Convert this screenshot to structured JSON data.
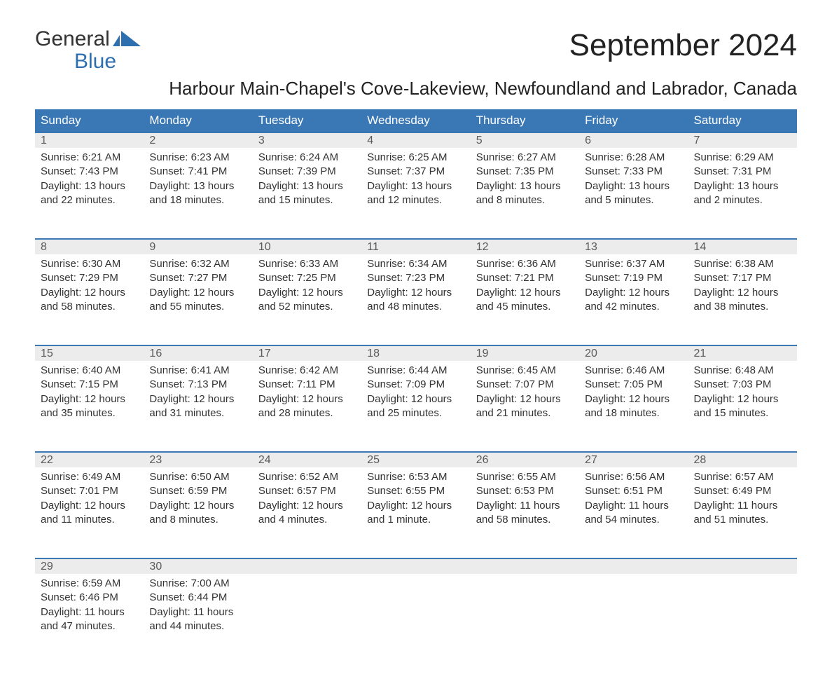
{
  "logo": {
    "line1": "General",
    "line2": "Blue"
  },
  "title": "September 2024",
  "subtitle": "Harbour Main-Chapel's Cove-Lakeview, Newfoundland and Labrador, Canada",
  "styling": {
    "header_bg": "#3a77b5",
    "header_text": "#ffffff",
    "daynum_bg": "#ececec",
    "daynum_border_top": "#3a77b5",
    "body_text": "#333333",
    "logo_accent": "#2e6fb0",
    "title_fontsize": 44,
    "subtitle_fontsize": 26,
    "th_fontsize": 17,
    "cell_fontsize": 15,
    "page_bg": "#ffffff"
  },
  "weekdays": [
    "Sunday",
    "Monday",
    "Tuesday",
    "Wednesday",
    "Thursday",
    "Friday",
    "Saturday"
  ],
  "weeks": [
    [
      {
        "day": "1",
        "sunrise": "Sunrise: 6:21 AM",
        "sunset": "Sunset: 7:43 PM",
        "dayl1": "Daylight: 13 hours",
        "dayl2": "and 22 minutes."
      },
      {
        "day": "2",
        "sunrise": "Sunrise: 6:23 AM",
        "sunset": "Sunset: 7:41 PM",
        "dayl1": "Daylight: 13 hours",
        "dayl2": "and 18 minutes."
      },
      {
        "day": "3",
        "sunrise": "Sunrise: 6:24 AM",
        "sunset": "Sunset: 7:39 PM",
        "dayl1": "Daylight: 13 hours",
        "dayl2": "and 15 minutes."
      },
      {
        "day": "4",
        "sunrise": "Sunrise: 6:25 AM",
        "sunset": "Sunset: 7:37 PM",
        "dayl1": "Daylight: 13 hours",
        "dayl2": "and 12 minutes."
      },
      {
        "day": "5",
        "sunrise": "Sunrise: 6:27 AM",
        "sunset": "Sunset: 7:35 PM",
        "dayl1": "Daylight: 13 hours",
        "dayl2": "and 8 minutes."
      },
      {
        "day": "6",
        "sunrise": "Sunrise: 6:28 AM",
        "sunset": "Sunset: 7:33 PM",
        "dayl1": "Daylight: 13 hours",
        "dayl2": "and 5 minutes."
      },
      {
        "day": "7",
        "sunrise": "Sunrise: 6:29 AM",
        "sunset": "Sunset: 7:31 PM",
        "dayl1": "Daylight: 13 hours",
        "dayl2": "and 2 minutes."
      }
    ],
    [
      {
        "day": "8",
        "sunrise": "Sunrise: 6:30 AM",
        "sunset": "Sunset: 7:29 PM",
        "dayl1": "Daylight: 12 hours",
        "dayl2": "and 58 minutes."
      },
      {
        "day": "9",
        "sunrise": "Sunrise: 6:32 AM",
        "sunset": "Sunset: 7:27 PM",
        "dayl1": "Daylight: 12 hours",
        "dayl2": "and 55 minutes."
      },
      {
        "day": "10",
        "sunrise": "Sunrise: 6:33 AM",
        "sunset": "Sunset: 7:25 PM",
        "dayl1": "Daylight: 12 hours",
        "dayl2": "and 52 minutes."
      },
      {
        "day": "11",
        "sunrise": "Sunrise: 6:34 AM",
        "sunset": "Sunset: 7:23 PM",
        "dayl1": "Daylight: 12 hours",
        "dayl2": "and 48 minutes."
      },
      {
        "day": "12",
        "sunrise": "Sunrise: 6:36 AM",
        "sunset": "Sunset: 7:21 PM",
        "dayl1": "Daylight: 12 hours",
        "dayl2": "and 45 minutes."
      },
      {
        "day": "13",
        "sunrise": "Sunrise: 6:37 AM",
        "sunset": "Sunset: 7:19 PM",
        "dayl1": "Daylight: 12 hours",
        "dayl2": "and 42 minutes."
      },
      {
        "day": "14",
        "sunrise": "Sunrise: 6:38 AM",
        "sunset": "Sunset: 7:17 PM",
        "dayl1": "Daylight: 12 hours",
        "dayl2": "and 38 minutes."
      }
    ],
    [
      {
        "day": "15",
        "sunrise": "Sunrise: 6:40 AM",
        "sunset": "Sunset: 7:15 PM",
        "dayl1": "Daylight: 12 hours",
        "dayl2": "and 35 minutes."
      },
      {
        "day": "16",
        "sunrise": "Sunrise: 6:41 AM",
        "sunset": "Sunset: 7:13 PM",
        "dayl1": "Daylight: 12 hours",
        "dayl2": "and 31 minutes."
      },
      {
        "day": "17",
        "sunrise": "Sunrise: 6:42 AM",
        "sunset": "Sunset: 7:11 PM",
        "dayl1": "Daylight: 12 hours",
        "dayl2": "and 28 minutes."
      },
      {
        "day": "18",
        "sunrise": "Sunrise: 6:44 AM",
        "sunset": "Sunset: 7:09 PM",
        "dayl1": "Daylight: 12 hours",
        "dayl2": "and 25 minutes."
      },
      {
        "day": "19",
        "sunrise": "Sunrise: 6:45 AM",
        "sunset": "Sunset: 7:07 PM",
        "dayl1": "Daylight: 12 hours",
        "dayl2": "and 21 minutes."
      },
      {
        "day": "20",
        "sunrise": "Sunrise: 6:46 AM",
        "sunset": "Sunset: 7:05 PM",
        "dayl1": "Daylight: 12 hours",
        "dayl2": "and 18 minutes."
      },
      {
        "day": "21",
        "sunrise": "Sunrise: 6:48 AM",
        "sunset": "Sunset: 7:03 PM",
        "dayl1": "Daylight: 12 hours",
        "dayl2": "and 15 minutes."
      }
    ],
    [
      {
        "day": "22",
        "sunrise": "Sunrise: 6:49 AM",
        "sunset": "Sunset: 7:01 PM",
        "dayl1": "Daylight: 12 hours",
        "dayl2": "and 11 minutes."
      },
      {
        "day": "23",
        "sunrise": "Sunrise: 6:50 AM",
        "sunset": "Sunset: 6:59 PM",
        "dayl1": "Daylight: 12 hours",
        "dayl2": "and 8 minutes."
      },
      {
        "day": "24",
        "sunrise": "Sunrise: 6:52 AM",
        "sunset": "Sunset: 6:57 PM",
        "dayl1": "Daylight: 12 hours",
        "dayl2": "and 4 minutes."
      },
      {
        "day": "25",
        "sunrise": "Sunrise: 6:53 AM",
        "sunset": "Sunset: 6:55 PM",
        "dayl1": "Daylight: 12 hours",
        "dayl2": "and 1 minute."
      },
      {
        "day": "26",
        "sunrise": "Sunrise: 6:55 AM",
        "sunset": "Sunset: 6:53 PM",
        "dayl1": "Daylight: 11 hours",
        "dayl2": "and 58 minutes."
      },
      {
        "day": "27",
        "sunrise": "Sunrise: 6:56 AM",
        "sunset": "Sunset: 6:51 PM",
        "dayl1": "Daylight: 11 hours",
        "dayl2": "and 54 minutes."
      },
      {
        "day": "28",
        "sunrise": "Sunrise: 6:57 AM",
        "sunset": "Sunset: 6:49 PM",
        "dayl1": "Daylight: 11 hours",
        "dayl2": "and 51 minutes."
      }
    ],
    [
      {
        "day": "29",
        "sunrise": "Sunrise: 6:59 AM",
        "sunset": "Sunset: 6:46 PM",
        "dayl1": "Daylight: 11 hours",
        "dayl2": "and 47 minutes."
      },
      {
        "day": "30",
        "sunrise": "Sunrise: 7:00 AM",
        "sunset": "Sunset: 6:44 PM",
        "dayl1": "Daylight: 11 hours",
        "dayl2": "and 44 minutes."
      },
      {
        "empty": true
      },
      {
        "empty": true
      },
      {
        "empty": true
      },
      {
        "empty": true
      },
      {
        "empty": true
      }
    ]
  ]
}
